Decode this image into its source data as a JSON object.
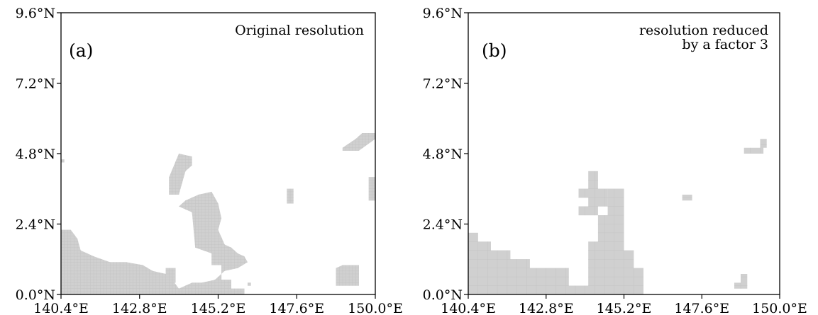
{
  "colors": {
    "mask": "#d0d0d0",
    "frame": "#000000",
    "background": "#ffffff"
  },
  "panels": [
    {
      "letter": "(a)",
      "caption_lines": [
        "Original resolution"
      ],
      "x_ticks": [
        "140.4°E",
        "142.8°E",
        "145.2°E",
        "147.6°E",
        "150.0°E"
      ],
      "y_ticks": [
        "0.0°N",
        "2.4°N",
        "4.8°N",
        "7.2°N",
        "9.6°N"
      ],
      "lon_range": [
        140.4,
        150.0
      ],
      "lat_range": [
        0.0,
        9.6
      ],
      "cell_deg": 0.1,
      "regions": [
        [
          [
            140.4,
            0
          ],
          [
            146.0,
            0
          ],
          [
            146.0,
            0.2
          ],
          [
            145.6,
            0.2
          ],
          [
            145.6,
            0.5
          ],
          [
            145.3,
            0.5
          ],
          [
            145.3,
            1.0
          ],
          [
            145.0,
            1.0
          ],
          [
            145.0,
            1.4
          ],
          [
            144.5,
            1.6
          ],
          [
            144.4,
            2.8
          ],
          [
            144.0,
            3.0
          ],
          [
            144.2,
            3.2
          ],
          [
            144.6,
            3.4
          ],
          [
            145.0,
            3.5
          ],
          [
            145.2,
            3.1
          ],
          [
            145.3,
            2.6
          ],
          [
            145.2,
            2.2
          ],
          [
            145.4,
            1.7
          ],
          [
            145.6,
            1.6
          ],
          [
            145.8,
            1.4
          ],
          [
            146.0,
            1.3
          ],
          [
            146.1,
            1.1
          ],
          [
            145.8,
            0.9
          ],
          [
            145.4,
            0.8
          ],
          [
            145.1,
            0.5
          ],
          [
            144.7,
            0.4
          ],
          [
            144.4,
            0.4
          ],
          [
            144.0,
            0.2
          ],
          [
            143.8,
            0.5
          ],
          [
            143.6,
            0.7
          ],
          [
            143.2,
            0.8
          ],
          [
            142.9,
            1.0
          ],
          [
            142.4,
            1.1
          ],
          [
            141.9,
            1.1
          ],
          [
            141.4,
            1.3
          ],
          [
            141.0,
            1.5
          ],
          [
            140.9,
            1.9
          ],
          [
            140.7,
            2.2
          ],
          [
            140.4,
            2.2
          ]
        ],
        [
          [
            143.6,
            0.9
          ],
          [
            143.9,
            0.9
          ],
          [
            143.9,
            0.4
          ],
          [
            143.6,
            0.4
          ]
        ],
        [
          [
            143.7,
            4.0
          ],
          [
            144.0,
            4.8
          ],
          [
            144.4,
            4.7
          ],
          [
            144.4,
            4.4
          ],
          [
            144.2,
            4.2
          ],
          [
            144.0,
            3.4
          ],
          [
            143.7,
            3.4
          ]
        ],
        [
          [
            147.3,
            3.1
          ],
          [
            147.5,
            3.1
          ],
          [
            147.5,
            3.6
          ],
          [
            147.3,
            3.6
          ]
        ],
        [
          [
            149.4,
            0.3
          ],
          [
            149.5,
            0.3
          ],
          [
            149.5,
            1.0
          ],
          [
            149.0,
            1.0
          ],
          [
            148.8,
            0.9
          ],
          [
            148.8,
            0.3
          ]
        ],
        [
          [
            149.5,
            4.9
          ],
          [
            150.0,
            5.3
          ],
          [
            150.0,
            5.5
          ],
          [
            149.6,
            5.5
          ],
          [
            149.4,
            5.3
          ],
          [
            149.0,
            5.0
          ],
          [
            149.0,
            4.9
          ]
        ],
        [
          [
            149.8,
            3.2
          ],
          [
            150.0,
            3.2
          ],
          [
            150.0,
            4.0
          ],
          [
            149.8,
            4.0
          ]
        ],
        [
          [
            140.4,
            4.5
          ],
          [
            140.5,
            4.5
          ],
          [
            140.5,
            4.6
          ],
          [
            140.4,
            4.6
          ]
        ],
        [
          [
            146.1,
            0.3
          ],
          [
            146.2,
            0.3
          ],
          [
            146.2,
            0.4
          ],
          [
            146.1,
            0.4
          ]
        ]
      ]
    },
    {
      "letter": "(b)",
      "caption_lines": [
        "resolution reduced",
        "by a factor 3"
      ],
      "x_ticks": [
        "140.4°E",
        "142.8°E",
        "145.2°E",
        "147.6°E",
        "150.0°E"
      ],
      "y_ticks": [
        "0.0°N",
        "2.4°N",
        "4.8°N",
        "7.2°N",
        "9.6°N"
      ],
      "lon_range": [
        140.4,
        150.0
      ],
      "lat_range": [
        0.0,
        9.6
      ],
      "cell_deg": 0.3,
      "regions": [
        [
          [
            140.4,
            0
          ],
          [
            145.8,
            0
          ],
          [
            145.8,
            0.9
          ],
          [
            145.5,
            0.9
          ],
          [
            145.5,
            1.5
          ],
          [
            145.2,
            1.5
          ],
          [
            145.2,
            3.6
          ],
          [
            144.7,
            3.6
          ],
          [
            144.7,
            2.7
          ],
          [
            144.4,
            2.7
          ],
          [
            144.4,
            1.8
          ],
          [
            144.1,
            1.8
          ],
          [
            144.1,
            0.3
          ],
          [
            143.5,
            0.3
          ],
          [
            143.5,
            0.9
          ],
          [
            143.2,
            0.9
          ],
          [
            142.6,
            0.9
          ],
          [
            142.3,
            0.9
          ],
          [
            142.3,
            1.2
          ],
          [
            141.7,
            1.2
          ],
          [
            141.7,
            1.5
          ],
          [
            141.1,
            1.5
          ],
          [
            141.1,
            1.8
          ],
          [
            140.7,
            1.8
          ],
          [
            140.7,
            2.1
          ],
          [
            140.4,
            2.1
          ]
        ],
        [
          [
            144.1,
            3.0
          ],
          [
            144.7,
            3.0
          ],
          [
            144.7,
            3.6
          ],
          [
            144.4,
            3.6
          ],
          [
            144.4,
            4.2
          ],
          [
            144.1,
            4.2
          ],
          [
            144.1,
            3.6
          ],
          [
            143.8,
            3.6
          ],
          [
            143.8,
            3.3
          ],
          [
            144.1,
            3.3
          ]
        ],
        [
          [
            143.8,
            2.7
          ],
          [
            144.4,
            2.7
          ],
          [
            144.4,
            3.0
          ],
          [
            143.8,
            3.0
          ]
        ],
        [
          [
            147.0,
            3.2
          ],
          [
            147.3,
            3.2
          ],
          [
            147.3,
            3.4
          ],
          [
            147.0,
            3.4
          ]
        ],
        [
          [
            148.6,
            0.2
          ],
          [
            149.0,
            0.2
          ],
          [
            149.0,
            0.7
          ],
          [
            148.8,
            0.7
          ],
          [
            148.8,
            0.4
          ],
          [
            148.6,
            0.4
          ]
        ],
        [
          [
            148.9,
            4.8
          ],
          [
            149.5,
            4.8
          ],
          [
            149.5,
            5.0
          ],
          [
            149.6,
            5.0
          ],
          [
            149.6,
            5.3
          ],
          [
            149.4,
            5.3
          ],
          [
            149.4,
            5.0
          ],
          [
            148.9,
            5.0
          ]
        ]
      ]
    }
  ]
}
